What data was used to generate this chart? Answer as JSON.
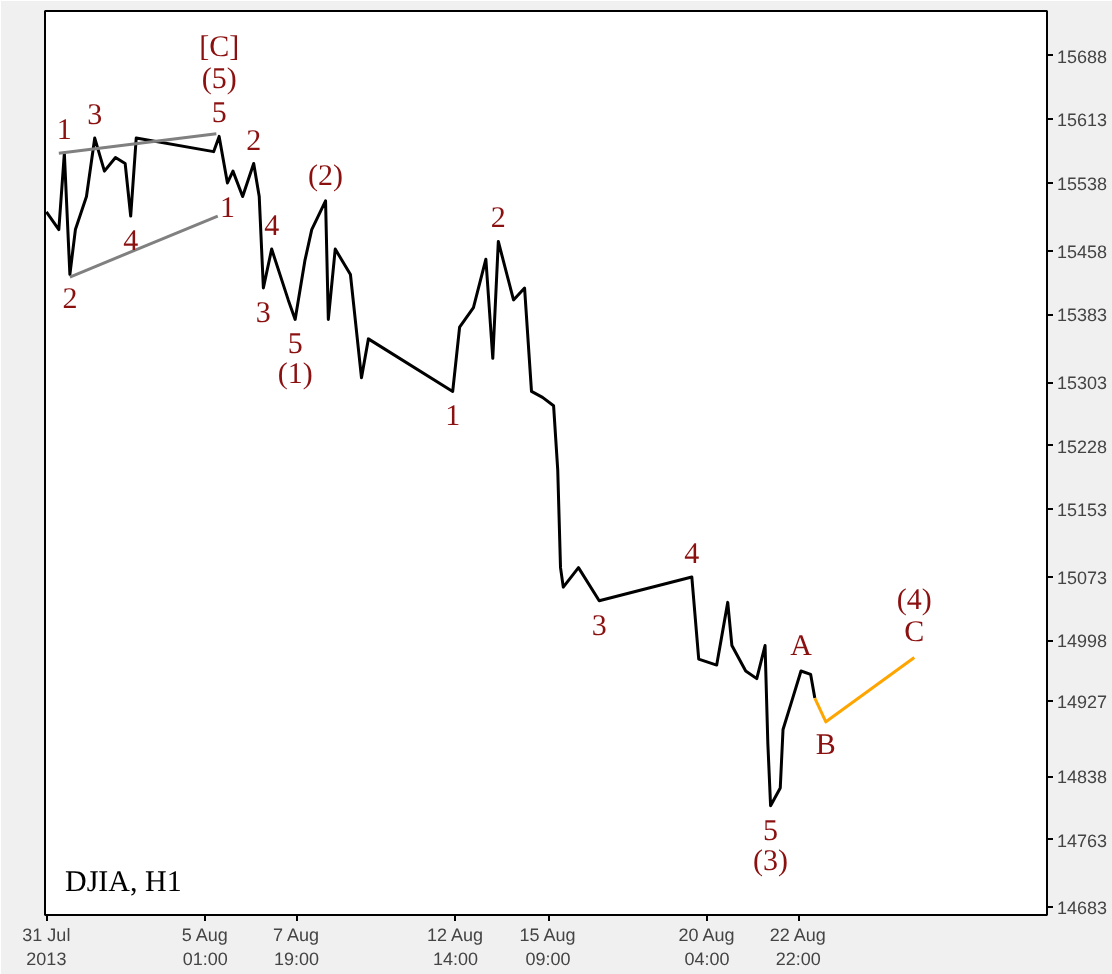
{
  "chart_data": {
    "type": "line",
    "title": "DJIA, H1",
    "xlim": [
      "2013-07-31T05:00",
      "2013-08-30T10:00"
    ],
    "ylim": [
      14674,
      15741
    ],
    "xticks": [
      {
        "value": "2013-07-31T06:00",
        "label": "31 Jul 2013"
      },
      {
        "value": "2013-08-05T01:00",
        "label": "5 Aug 01:00"
      },
      {
        "value": "2013-08-07T19:00",
        "label": "7 Aug 19:00"
      },
      {
        "value": "2013-08-12T14:00",
        "label": "12 Aug 14:00"
      },
      {
        "value": "2013-08-15T09:00",
        "label": "15 Aug 09:00"
      },
      {
        "value": "2013-08-20T04:00",
        "label": "20 Aug 04:00"
      },
      {
        "value": "2013-08-22T22:00",
        "label": "22 Aug 22:00"
      }
    ],
    "yticks": [
      14683,
      14763,
      14838,
      14927,
      14998,
      15073,
      15153,
      15228,
      15303,
      15383,
      15458,
      15538,
      15613,
      15688
    ],
    "series": [
      {
        "color": "#000000",
        "x": [
          "2013-07-31T06:00",
          "2013-07-31T15:00",
          "2013-07-31T19:00",
          "2013-07-31T23:00",
          "2013-08-01T03:00",
          "2013-08-01T11:00",
          "2013-08-01T17:00",
          "2013-08-02T00:00",
          "2013-08-02T08:00",
          "2013-08-02T15:00",
          "2013-08-02T19:00",
          "2013-08-02T23:00",
          "2013-08-05T07:00",
          "2013-08-05T11:00",
          "2013-08-05T17:00",
          "2013-08-05T21:00",
          "2013-08-06T04:00",
          "2013-08-06T12:00",
          "2013-08-06T16:00",
          "2013-08-06T19:00",
          "2013-08-07T01:00",
          "2013-08-07T13:00",
          "2013-08-07T18:00",
          "2013-08-08T01:00",
          "2013-08-08T06:00",
          "2013-08-08T16:00",
          "2013-08-08T18:00",
          "2013-08-08T23:00",
          "2013-08-09T10:00",
          "2013-08-09T18:00",
          "2013-08-09T23:00",
          "2013-08-12T12:00",
          "2013-08-12T17:00",
          "2013-08-13T03:00",
          "2013-08-13T12:00",
          "2013-08-13T17:00",
          "2013-08-13T21:00",
          "2013-08-14T08:00",
          "2013-08-14T16:00",
          "2013-08-14T21:00",
          "2013-08-15T05:00",
          "2013-08-15T13:00",
          "2013-08-15T16:00",
          "2013-08-15T18:00",
          "2013-08-15T20:00",
          "2013-08-16T07:00",
          "2013-08-16T22:00",
          "2013-08-19T17:00",
          "2013-08-19T22:00",
          "2013-08-20T11:00",
          "2013-08-20T19:00",
          "2013-08-20T22:00",
          "2013-08-21T08:00",
          "2013-08-21T16:00",
          "2013-08-21T22:00",
          "2013-08-22T00:00",
          "2013-08-22T02:00",
          "2013-08-22T09:00",
          "2013-08-22T11:00",
          "2013-08-22T18:00",
          "2013-08-23T00:00",
          "2013-08-23T07:00",
          "2013-08-23T10:00"
        ],
        "values": [
          15504,
          15483,
          15573,
          15430,
          15483,
          15522,
          15591,
          15552,
          15568,
          15561,
          15499,
          15591,
          15575,
          15593,
          15538,
          15552,
          15522,
          15561,
          15522,
          15414,
          15460,
          15400,
          15377,
          15446,
          15483,
          15517,
          15377,
          15460,
          15430,
          15308,
          15354,
          15292,
          15368,
          15391,
          15448,
          15331,
          15469,
          15400,
          15414,
          15292,
          15285,
          15275,
          15199,
          15084,
          15061,
          15084,
          15045,
          15073,
          14976,
          14969,
          15043,
          14992,
          14962,
          14953,
          14992,
          14877,
          14803,
          14824,
          14893,
          14930,
          14962,
          14958,
          14930
        ]
      },
      {
        "color": "#ffa500",
        "x": [
          "2013-08-23T10:00",
          "2013-08-23T18:00",
          "2013-08-26T10:00"
        ],
        "values": [
          14930,
          14902,
          14978
        ]
      },
      {
        "color": "#808080",
        "x": [
          "2013-07-31T15:00",
          "2013-08-05T09:00"
        ],
        "values": [
          15573,
          15596
        ]
      },
      {
        "color": "#808080",
        "x": [
          "2013-07-31T23:00",
          "2013-08-05T10:00"
        ],
        "values": [
          15427,
          15499
        ]
      }
    ],
    "annotations": [
      {
        "text": "[C]",
        "x": "2013-08-05T11:00",
        "y": 15593
      },
      {
        "text": "(5)",
        "x": "2013-08-05T11:00",
        "y": 15593
      },
      {
        "text": "5",
        "x": "2013-08-05T11:00",
        "y": 15593
      },
      {
        "text": "1",
        "x": "2013-07-31T19:00",
        "y": 15573
      },
      {
        "text": "3",
        "x": "2013-08-01T17:00",
        "y": 15591
      },
      {
        "text": "2",
        "x": "2013-07-31T23:00",
        "y": 15430
      },
      {
        "text": "4",
        "x": "2013-08-02T19:00",
        "y": 15499
      },
      {
        "text": "1",
        "x": "2013-08-05T17:00",
        "y": 15538
      },
      {
        "text": "2",
        "x": "2013-08-06T12:00",
        "y": 15561
      },
      {
        "text": "4",
        "x": "2013-08-07T01:00",
        "y": 15460
      },
      {
        "text": "3",
        "x": "2013-08-06T19:00",
        "y": 15414
      },
      {
        "text": "5",
        "x": "2013-08-07T18:00",
        "y": 15377
      },
      {
        "text": "(1)",
        "x": "2013-08-07T18:00",
        "y": 15377
      },
      {
        "text": "(2)",
        "x": "2013-08-08T16:00",
        "y": 15517
      },
      {
        "text": "1",
        "x": "2013-08-12T12:00",
        "y": 15292
      },
      {
        "text": "2",
        "x": "2013-08-13T21:00",
        "y": 15469
      },
      {
        "text": "3",
        "x": "2013-08-16T22:00",
        "y": 15045
      },
      {
        "text": "4",
        "x": "2013-08-19T17:00",
        "y": 15073
      },
      {
        "text": "5",
        "x": "2013-08-22T02:00",
        "y": 14803
      },
      {
        "text": "(3)",
        "x": "2013-08-22T02:00",
        "y": 14803
      },
      {
        "text": "A",
        "x": "2013-08-23T00:00",
        "y": 14962
      },
      {
        "text": "B",
        "x": "2013-08-23T18:00",
        "y": 14902
      },
      {
        "text": "(4)",
        "x": "2013-08-26T10:00",
        "y": 14978
      },
      {
        "text": "C",
        "x": "2013-08-26T10:00",
        "y": 14978
      }
    ]
  }
}
